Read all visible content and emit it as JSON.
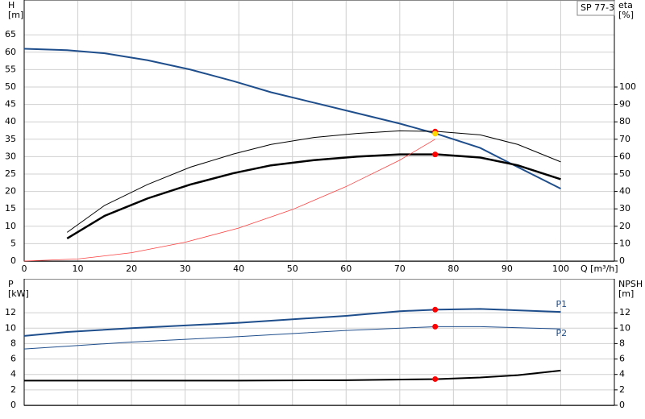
{
  "chart_data": [
    {
      "type": "line",
      "title": "SP 77-3",
      "xlabel": "Q [m³/h]",
      "ylabel": [
        "H",
        "[m]"
      ],
      "y2label": [
        "eta",
        "[%]"
      ],
      "xlim": [
        0,
        110
      ],
      "xticks": [
        0,
        10,
        20,
        30,
        40,
        50,
        60,
        70,
        80,
        90,
        100
      ],
      "ylim": [
        0,
        75
      ],
      "yticks": [
        0,
        5,
        10,
        15,
        20,
        25,
        30,
        35,
        40,
        45,
        50,
        55,
        60,
        65
      ],
      "y2lim": [
        0,
        150
      ],
      "y2ticks": [
        0,
        10,
        20,
        30,
        40,
        50,
        60,
        70,
        80,
        90,
        100
      ],
      "grid": true,
      "series": [
        {
          "color": "#1f4e8c",
          "width": 2,
          "x": [
            0,
            8,
            15,
            23,
            31,
            39,
            46,
            54,
            62,
            70,
            77,
            85,
            92,
            100
          ],
          "values": [
            61,
            60.6,
            59.7,
            57.7,
            55,
            51.7,
            48.5,
            45.5,
            42.5,
            39.5,
            36.5,
            32.5,
            27,
            20.8
          ]
        },
        {
          "color": "#000000",
          "width": 2.5,
          "axis": "y2",
          "x": [
            8,
            15,
            23,
            31,
            39,
            46,
            54,
            62,
            70,
            77,
            85,
            92,
            100
          ],
          "values": [
            13,
            26,
            36,
            44,
            50.5,
            55,
            58,
            60,
            61.3,
            61.3,
            59.5,
            55,
            47
          ]
        },
        {
          "color": "#000000",
          "width": 1,
          "axis": "y2",
          "x": [
            8,
            15,
            23,
            31,
            39,
            46,
            54,
            62,
            70,
            77,
            85,
            92,
            100
          ],
          "values": [
            16.5,
            32,
            44,
            54,
            61.5,
            67,
            71,
            73.3,
            74.8,
            74.5,
            72.5,
            67,
            57
          ]
        },
        {
          "color": "#ff4040",
          "width": 0.8,
          "x": [
            0,
            10,
            20,
            30,
            40,
            50,
            60,
            70,
            76.6
          ],
          "values": [
            0,
            0.6,
            2.4,
            5.4,
            9.5,
            14.8,
            21.4,
            29,
            35
          ]
        },
        {
          "color": "#ff0000",
          "marker": true,
          "x": [
            76.6
          ],
          "values": [
            37.2
          ]
        },
        {
          "color": "#ffd700",
          "marker": true,
          "x": [
            76.6
          ],
          "values": [
            36.6
          ]
        },
        {
          "color": "#ff0000",
          "marker": true,
          "axis": "y2",
          "x": [
            76.6
          ],
          "values": [
            61.3
          ]
        }
      ]
    },
    {
      "type": "line",
      "ylabel": [
        "P",
        "[kW]"
      ],
      "y2label": [
        "NPSH",
        "[m]"
      ],
      "xlim": [
        0,
        110
      ],
      "ylim": [
        0,
        16.4
      ],
      "yticks": [
        0,
        2,
        4,
        6,
        8,
        10,
        12
      ],
      "y2lim": [
        0,
        16.4
      ],
      "y2ticks": [
        0,
        2,
        4,
        6,
        8,
        10,
        12
      ],
      "grid": true,
      "series": [
        {
          "name": "P1",
          "color": "#1f4e8c",
          "width": 2,
          "x": [
            0,
            8,
            20,
            40,
            60,
            70,
            77,
            85,
            100
          ],
          "values": [
            9,
            9.5,
            10,
            10.7,
            11.6,
            12.2,
            12.4,
            12.5,
            12.1
          ]
        },
        {
          "name": "P2",
          "color": "#1f4e8c",
          "width": 1,
          "x": [
            0,
            20,
            40,
            60,
            77,
            85,
            100
          ],
          "values": [
            7.3,
            8.2,
            8.9,
            9.7,
            10.2,
            10.2,
            9.9
          ]
        },
        {
          "color": "#000000",
          "width": 2,
          "axis": "y2",
          "x": [
            0,
            8,
            40,
            60,
            77,
            85,
            92,
            100
          ],
          "values": [
            3.2,
            3.2,
            3.2,
            3.25,
            3.4,
            3.6,
            3.9,
            4.5
          ]
        },
        {
          "color": "#ff0000",
          "marker": true,
          "x": [
            76.6
          ],
          "values": [
            12.4
          ]
        },
        {
          "color": "#ff0000",
          "marker": true,
          "x": [
            76.6
          ],
          "values": [
            10.2
          ]
        },
        {
          "color": "#ff0000",
          "marker": true,
          "axis": "y2",
          "x": [
            76.6
          ],
          "values": [
            3.4
          ]
        }
      ]
    }
  ]
}
